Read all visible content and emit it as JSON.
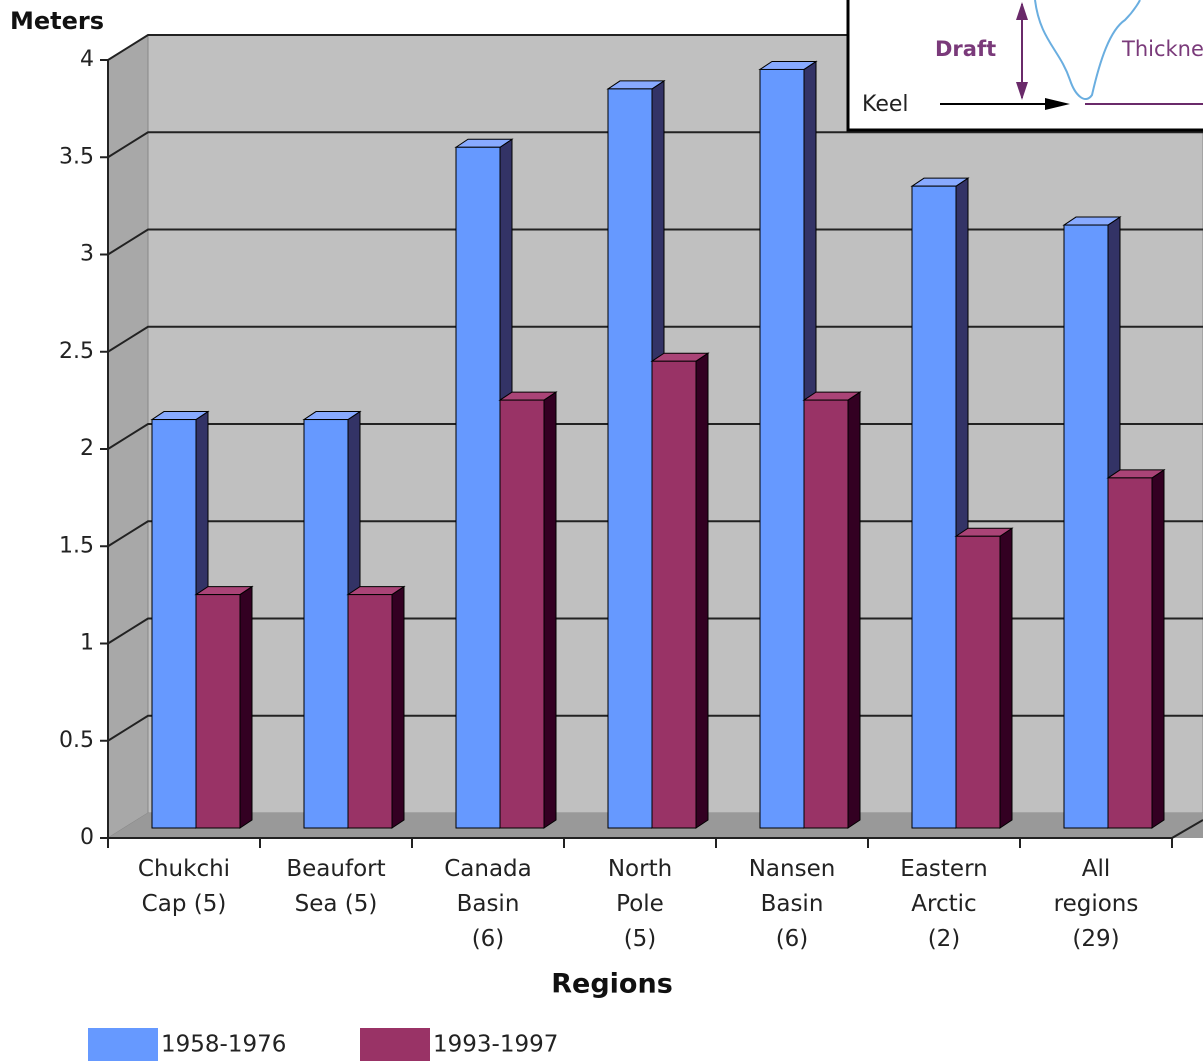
{
  "chart_data": {
    "type": "bar3d",
    "y_axis_label": "Meters",
    "x_axis_label": "Regions",
    "categories": [
      "Chukchi Cap (5)",
      "Beaufort Sea (5)",
      "Canada Basin (6)",
      "North Pole (5)",
      "Nansen Basin (6)",
      "Eastern Arctic (2)",
      "All regions (29)"
    ],
    "series": [
      {
        "name": "1958-1976",
        "color": "#6699ff",
        "values": [
          2.1,
          2.1,
          3.5,
          3.8,
          3.9,
          3.3,
          3.1
        ]
      },
      {
        "name": "1993-1997",
        "color": "#993366",
        "values": [
          1.2,
          1.2,
          2.2,
          2.4,
          2.2,
          1.5,
          1.8
        ]
      }
    ],
    "ylim": [
      0,
      4
    ],
    "yticks": [
      0,
      0.5,
      1,
      1.5,
      2,
      2.5,
      3,
      3.5,
      4
    ],
    "grid": true,
    "legend": "bottom",
    "inset_labels": [
      "Draft",
      "Thickness",
      "Keel"
    ]
  }
}
